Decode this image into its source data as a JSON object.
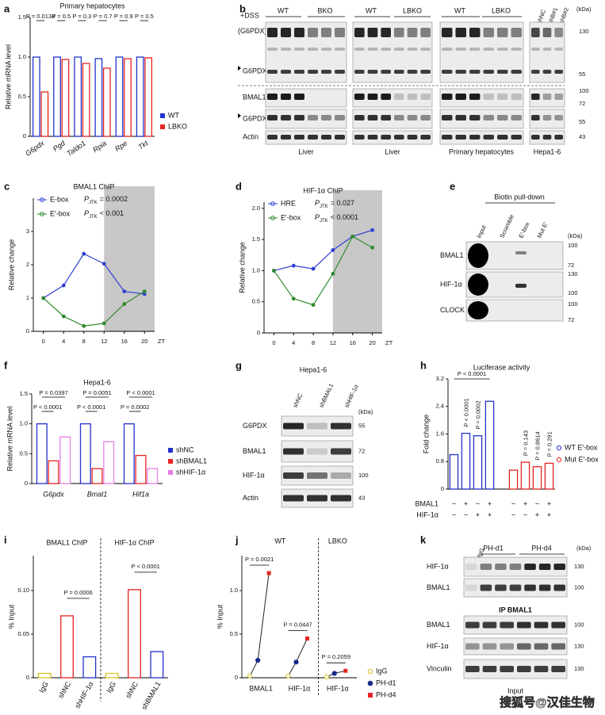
{
  "chart_data": [
    {
      "label": "a",
      "type": "bar",
      "title": "Primary hepatocytes",
      "y_label": "Relative mRNA level",
      "categories": [
        "G6pdx",
        "Pgd",
        "Taldo1",
        "Rpia",
        "Rpe",
        "Tkt"
      ],
      "series": [
        {
          "name": "WT",
          "color": "#2233cc",
          "values": [
            1.0,
            1.0,
            1.0,
            0.98,
            1.0,
            1.0
          ]
        },
        {
          "name": "LBKO",
          "color": "#e52421",
          "values": [
            0.56,
            0.97,
            0.92,
            0.86,
            0.98,
            0.99
          ]
        }
      ],
      "ylim": [
        0,
        1.5
      ],
      "yticks": [
        0,
        0.5,
        {
          "value": 1,
          "label": "1.0"
        },
        1.5
      ],
      "annotations": [
        "P = 0.0138",
        "P = 0.5",
        "P = 0.3",
        "P = 0.7",
        "P = 0.9",
        "P = 0.5"
      ]
    },
    {
      "label": "c",
      "type": "line",
      "title": "BMAL1 ChIP",
      "y_label": "Relative change",
      "x_label": "ZT",
      "x": [
        0,
        4,
        8,
        12,
        16,
        20
      ],
      "xlim": [
        -2,
        22
      ],
      "xticks": [
        0,
        4,
        8,
        12,
        16,
        20
      ],
      "shaded_from": 12,
      "ylim": [
        0,
        4
      ],
      "yticks": [
        0,
        1,
        2,
        3
      ],
      "series": [
        {
          "name": "E-box",
          "color": "#2f3fd0",
          "values": [
            1.0,
            1.38,
            2.33,
            2.03,
            1.2,
            1.12
          ]
        },
        {
          "name": "E′-box",
          "color": "#2e8b2e",
          "values": [
            1.0,
            0.45,
            0.16,
            0.24,
            0.82,
            1.2
          ]
        }
      ],
      "annotations": [
        {
          "text": "P",
          "sub": "JTK",
          "rest": "= 0.0002"
        },
        {
          "text": "P",
          "sub": "JTK",
          "rest": "< 0.001"
        }
      ]
    },
    {
      "label": "d",
      "type": "line",
      "title": "HIF-1α ChIP",
      "y_label": "Relative change",
      "x_label": "ZT",
      "x": [
        0,
        4,
        8,
        12,
        16,
        20
      ],
      "xlim": [
        -2,
        22
      ],
      "xticks": [
        0,
        4,
        8,
        12,
        16,
        20
      ],
      "shaded_from": 12,
      "ylim": [
        0,
        2.1
      ],
      "yticks": [
        0,
        0.5,
        {
          "value": 1,
          "label": "1.0"
        },
        1.5,
        {
          "value": 2,
          "label": "2.0"
        }
      ],
      "series": [
        {
          "name": "HRE",
          "color": "#2f3fd0",
          "values": [
            1.0,
            1.08,
            1.03,
            1.33,
            1.55,
            1.65
          ]
        },
        {
          "name": "E′-box",
          "color": "#2e8b2e",
          "values": [
            1.0,
            0.55,
            0.45,
            0.95,
            1.55,
            1.37
          ]
        }
      ],
      "annotations": [
        {
          "text": "P",
          "sub": "JTK",
          "rest": "= 0.027"
        },
        {
          "text": "P",
          "sub": "JTK",
          "rest": "< 0.0001"
        }
      ]
    },
    {
      "label": "f",
      "type": "bar",
      "title": "Hepa1-6",
      "y_label": "Relative mRNA level",
      "categories": [
        "G6pdx",
        "Bmal1",
        "Hif1a"
      ],
      "series": [
        {
          "name": "shNC",
          "color": "#2233cc",
          "values": [
            1.0,
            1.0,
            1.0
          ]
        },
        {
          "name": "shBMAL1",
          "color": "#e52421",
          "values": [
            0.38,
            0.25,
            0.47
          ]
        },
        {
          "name": "shHIF-1α",
          "color": "#e67ee6",
          "values": [
            0.78,
            0.7,
            0.25
          ]
        }
      ],
      "ylim": [
        0,
        1.5
      ],
      "yticks": [
        0,
        0.5,
        {
          "value": 1,
          "label": "1.0"
        },
        1.5
      ],
      "annotations": [
        "P = 0.0397",
        "P < 0.0001",
        "P = 0.0051",
        "P < 0.0001",
        "P < 0.0001",
        "P = 0.0002"
      ]
    },
    {
      "label": "h",
      "type": "bar",
      "title": "Luciferase activity",
      "y_label": "Fold change",
      "series": [
        {
          "name": "WT E′-box",
          "color": "#2233cc",
          "values": [
            1.0,
            1.62,
            1.55,
            2.55
          ],
          "notes": [
            null,
            "P < 0.0001",
            "P = 0.0002",
            null
          ]
        },
        {
          "name": "Mut E′-box",
          "color": "#e52421",
          "values": [
            0.55,
            0.78,
            0.65,
            0.75
          ],
          "notes": [
            null,
            "P = 0.143",
            "P = 0.8614",
            "P = 0.291"
          ]
        }
      ],
      "ylim": [
        0,
        3.2
      ],
      "yticks": [
        0,
        0.8,
        1.6,
        2.4,
        3.2
      ],
      "annotations": [
        "P < 0.0001"
      ],
      "conditions": [
        {
          "name": "BMAL1",
          "signs": [
            "−",
            "+",
            "−",
            "+",
            "−",
            "+",
            "−",
            "+"
          ]
        },
        {
          "name": "HIF-1α",
          "signs": [
            "−",
            "−",
            "+",
            "+",
            "−",
            "−",
            "+",
            "+"
          ]
        }
      ]
    },
    {
      "label": "i",
      "type": "bar",
      "y_label": "% Input",
      "categories": [
        "IgG",
        "shNC",
        "shHIF-1α",
        "IgG",
        "shNC",
        "shBMAL1"
      ],
      "values": [
        0.005,
        0.071,
        0.024,
        0.005,
        0.101,
        0.03
      ],
      "colors": [
        "#d9c21f",
        "#e52421",
        "#2233cc",
        "#d9c21f",
        "#e52421",
        "#2233cc"
      ],
      "groups": [
        "BMAL1 ChIP",
        "HIF-1α ChIP"
      ],
      "ylim": [
        0,
        0.14
      ],
      "yticks": [
        0,
        0.05,
        {
          "value": 0.1,
          "label": "0.10"
        }
      ],
      "annotations": [
        "P = 0.0006",
        "P < 0.0001"
      ]
    },
    {
      "label": "j",
      "type": "paired",
      "y_label": "% Input",
      "categories": [
        "BMAL1",
        "HIF-1α",
        "HIF-1α"
      ],
      "groups": [
        "WT",
        "LBKO"
      ],
      "series": [
        {
          "name": "IgG",
          "color": "#d9c21f",
          "values": [
            0.02,
            0.02,
            0.01
          ]
        },
        {
          "name": "PH-d1",
          "color": "#1a2a8c",
          "values": [
            0.2,
            0.18,
            0.05
          ]
        },
        {
          "name": "PH-d4",
          "color": "#e52421",
          "values": [
            1.2,
            0.45,
            0.08
          ]
        }
      ],
      "ylim": [
        0,
        1.4
      ],
      "yticks": [
        0,
        0.5,
        {
          "value": 1,
          "label": "1.0"
        }
      ],
      "annotations": [
        "P = 0.0021",
        "P = 0.0447",
        "P = 0.2059"
      ]
    }
  ],
  "blots": {
    "b": {
      "label": "b",
      "header": [
        "WT",
        "BKO",
        "WT",
        "LBKO",
        "WT",
        "LBKO"
      ],
      "shrna": [
        "shNC",
        "shB#1",
        "shB#2"
      ],
      "treatment": "+DSS",
      "dimer": "(G6PDX)",
      "dimer_sub": "2",
      "rows": [
        "G6PDX",
        "BMAL1",
        "G6PDX",
        "Actin"
      ],
      "tissues": [
        "Liver",
        "Liver",
        "Primary hepatocytes",
        "Hepa1-6"
      ],
      "kda_unit": "(kDa)",
      "kda": [
        130,
        55,
        100,
        72,
        55,
        43
      ]
    },
    "e": {
      "label": "e",
      "title": "Biotin pull-down",
      "lanes": [
        "Input",
        "Scramble",
        "E′-box",
        "Mut E′"
      ],
      "kda_unit": "(kDa)",
      "rows": [
        {
          "name": "BMAL1",
          "kda": [
            100,
            72
          ]
        },
        {
          "name": "HIF-1α",
          "kda": [
            130,
            100
          ]
        },
        {
          "name": "CLOCK",
          "kda": [
            100,
            72
          ]
        }
      ]
    },
    "g": {
      "label": "g",
      "title": "Hepa1-6",
      "lanes": [
        "shNC",
        "shBMAL1",
        "shHIF-1α"
      ],
      "kda_unit": "(kDa)",
      "rows": [
        {
          "name": "G6PDX",
          "kda": [
            55
          ]
        },
        {
          "name": "BMAL1",
          "kda": [
            72
          ]
        },
        {
          "name": "HIF-1α",
          "kda": [
            100
          ]
        },
        {
          "name": "Actin",
          "kda": [
            43
          ]
        }
      ]
    },
    "k": {
      "label": "k",
      "lanes": [
        "IgG",
        "PH-d1",
        "PH-d4"
      ],
      "kda_unit": "(kDa)",
      "ip_rows": [
        {
          "name": "HIF-1α",
          "kda": [
            130
          ]
        },
        {
          "name": "BMAL1",
          "kda": [
            100
          ]
        }
      ],
      "ip_label": "IP BMAL1",
      "input_rows": [
        {
          "name": "BMAL1",
          "kda": [
            100
          ]
        },
        {
          "name": "HIF-1α",
          "kda": [
            130
          ]
        },
        {
          "name": "Vinculin",
          "kda": [
            130
          ]
        }
      ],
      "input_label": "Input"
    }
  },
  "watermark": "搜狐号@汉佳生物"
}
